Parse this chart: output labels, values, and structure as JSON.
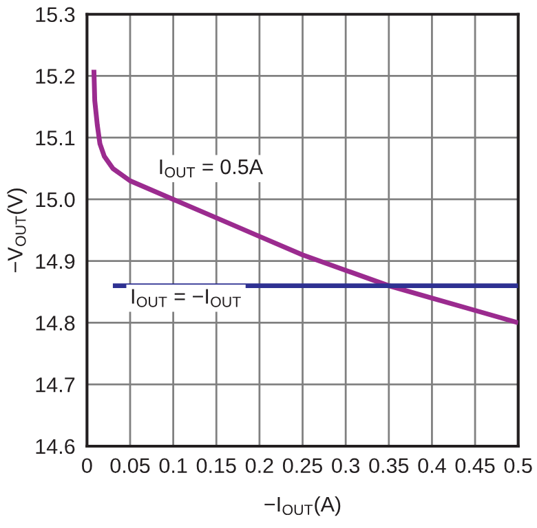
{
  "chart_data": {
    "type": "line",
    "xlabel": "−I$_{OUT}$(A)",
    "ylabel": "−V$_{OUT}$(V)",
    "xlim": [
      0,
      0.5
    ],
    "ylim": [
      14.6,
      15.3
    ],
    "xticks": [
      0,
      0.05,
      0.1,
      0.15,
      0.2,
      0.25,
      0.3,
      0.35,
      0.4,
      0.45,
      0.5
    ],
    "yticks": [
      {
        "value": 14.6,
        "label": "14.6"
      },
      {
        "value": 14.7,
        "label": "14.7"
      },
      {
        "value": 14.8,
        "label": "14.8"
      },
      {
        "value": 14.9,
        "label": "14.9"
      },
      {
        "value": 15.0,
        "label": "15.0"
      },
      {
        "value": 15.1,
        "label": "15.1"
      },
      {
        "value": 15.2,
        "label": "15.2"
      },
      {
        "value": 15.3,
        "label": "15.3"
      }
    ],
    "grid": true,
    "series": [
      {
        "name": "I$_{OUT}$ = 0.5A",
        "color": "#9b2b8f",
        "x": [
          0.008,
          0.009,
          0.012,
          0.015,
          0.02,
          0.03,
          0.05,
          0.1,
          0.15,
          0.2,
          0.25,
          0.3,
          0.35,
          0.4,
          0.45,
          0.5
        ],
        "values": [
          15.21,
          15.16,
          15.12,
          15.09,
          15.07,
          15.05,
          15.03,
          15.0,
          14.97,
          14.94,
          14.91,
          14.885,
          14.86,
          14.84,
          14.82,
          14.8
        ]
      },
      {
        "name": "I$_{OUT}$ = −I$_{OUT}$",
        "color": "#2e3192",
        "x": [
          0.03,
          0.5
        ],
        "values": [
          14.86,
          14.86
        ]
      }
    ]
  }
}
